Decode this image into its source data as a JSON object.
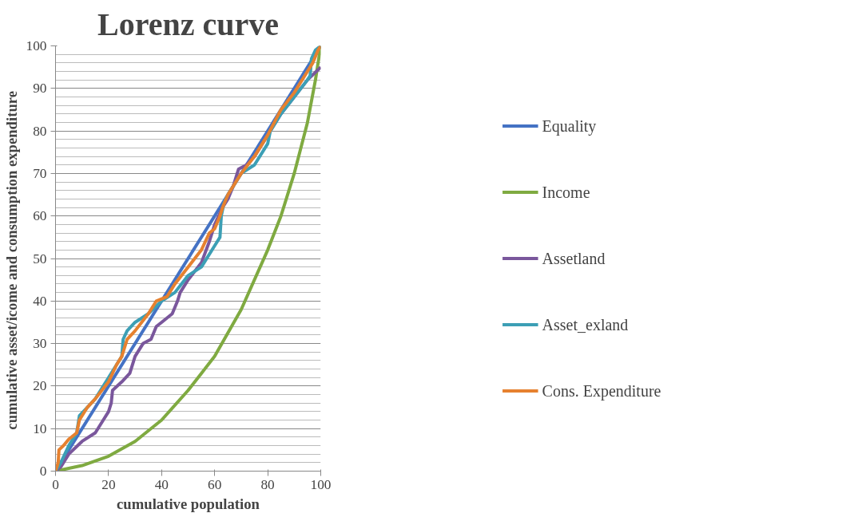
{
  "chart_data": {
    "type": "line",
    "title": "Lorenz curve",
    "xlabel": "cumulative population",
    "ylabel": "cumulative  asset/icome and consumption expenditure",
    "xlim": [
      0,
      100
    ],
    "ylim": [
      0,
      100
    ],
    "xticks": [
      0,
      20,
      40,
      60,
      80,
      100
    ],
    "yticks": [
      0,
      10,
      20,
      30,
      40,
      50,
      60,
      70,
      80,
      90,
      100
    ],
    "grid": "y",
    "legend": "right",
    "marker": "none",
    "line_style": "solid",
    "series": [
      {
        "name": "Equality",
        "color": "#4472c4",
        "x": [
          0,
          100
        ],
        "values": [
          0,
          100
        ]
      },
      {
        "name": "Income",
        "color": "#7faa41",
        "x": [
          0,
          10,
          20,
          30,
          40,
          50,
          60,
          70,
          80,
          85,
          90,
          95,
          98,
          100
        ],
        "values": [
          0,
          1.3,
          3.5,
          7,
          12,
          19,
          27,
          38,
          52,
          60,
          70,
          82,
          92,
          100
        ]
      },
      {
        "name": "Assetland",
        "color": "#7a579c",
        "x": [
          0,
          2,
          5,
          10,
          15,
          18,
          20,
          21,
          21.5,
          25,
          28,
          30,
          33,
          36,
          38,
          40,
          44,
          46,
          47,
          50,
          55,
          58,
          60,
          63,
          65,
          67,
          69,
          72,
          75,
          80,
          85,
          90,
          95,
          100
        ],
        "values": [
          0,
          1,
          4,
          7,
          9,
          12,
          14,
          16,
          19,
          21,
          23,
          27,
          30,
          31,
          34,
          35,
          37,
          40,
          42,
          45,
          49,
          54,
          58,
          62,
          64,
          67,
          71,
          72,
          74,
          79,
          84,
          88,
          92,
          95
        ]
      },
      {
        "name": "Asset_exland",
        "color": "#3c9fb5",
        "x": [
          0,
          2,
          5,
          8,
          9,
          12,
          15,
          20,
          25,
          25.5,
          27,
          30,
          35,
          40,
          45,
          50,
          55,
          60,
          62,
          62.5,
          63.5,
          65,
          70,
          75,
          80,
          81,
          85,
          90,
          95,
          96,
          96.5,
          98,
          100
        ],
        "values": [
          0,
          2,
          6,
          9,
          13,
          15,
          17,
          22,
          27,
          31,
          33,
          35,
          37,
          40,
          42,
          46,
          48,
          53,
          55,
          60,
          63,
          65,
          70,
          72,
          77,
          80,
          84,
          88,
          92,
          93,
          97,
          99,
          100
        ]
      },
      {
        "name": "Cons. Expenditure",
        "color": "#e6812f",
        "x": [
          0,
          1,
          1.3,
          3,
          5,
          8,
          9,
          12,
          15,
          20,
          23,
          25,
          27,
          30,
          35,
          38,
          42,
          45,
          50,
          55,
          58,
          60,
          62,
          63,
          65,
          70,
          75,
          80,
          85,
          90,
          95,
          97,
          99,
          100
        ],
        "values": [
          0,
          2,
          5,
          6,
          7.5,
          9,
          12,
          15,
          17,
          21,
          25,
          27,
          31,
          33,
          37,
          40,
          41,
          44,
          48,
          52,
          56,
          57,
          60,
          62,
          65,
          70,
          74,
          79,
          85,
          89,
          94,
          96,
          99,
          100
        ]
      }
    ]
  }
}
